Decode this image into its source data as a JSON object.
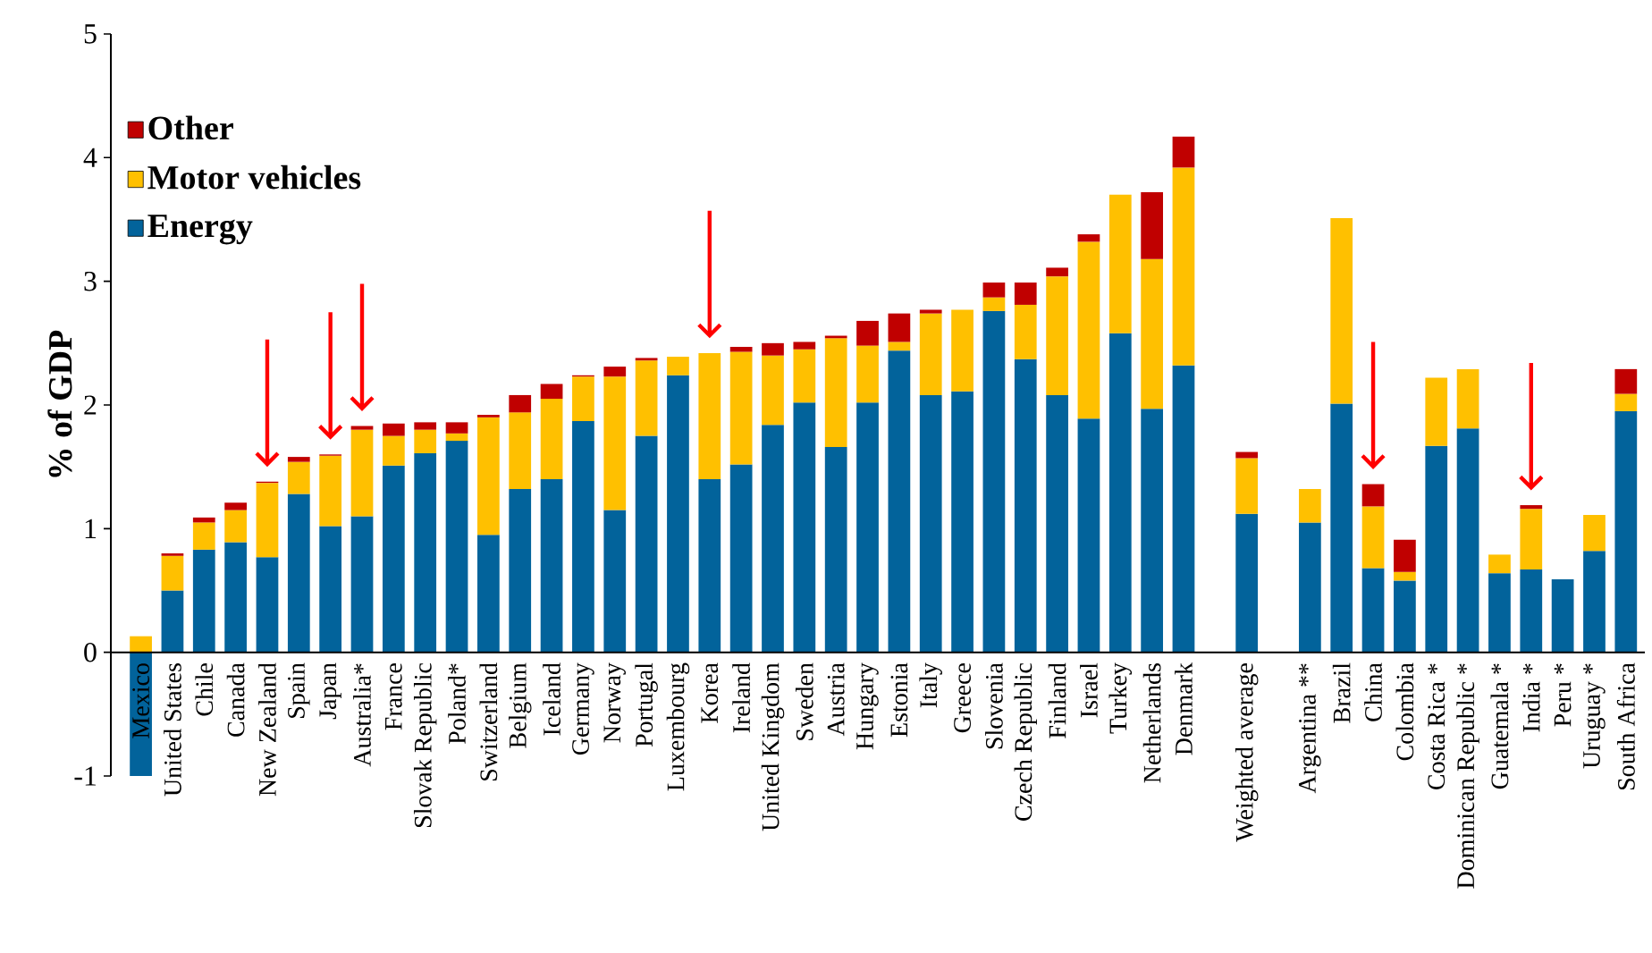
{
  "chart_data": {
    "type": "bar",
    "stacked": true,
    "ylabel": "% of GDP",
    "ylim": [
      -1,
      5
    ],
    "yticks": [
      -1,
      0,
      1,
      2,
      3,
      4,
      5
    ],
    "legend": "top left",
    "categories": [
      "Mexico",
      "United States",
      "Chile",
      "Canada",
      "New Zealand",
      "Spain",
      "Japan",
      "Australia*",
      "France",
      "Slovak Republic",
      "Poland*",
      "Switzerland",
      "Belgium",
      "Iceland",
      "Germany",
      "Norway",
      "Portugal",
      "Luxembourg",
      "Korea",
      "Ireland",
      "United Kingdom",
      "Sweden",
      "Austria",
      "Hungary",
      "Estonia",
      "Italy",
      "Greece",
      "Slovenia",
      "Czech Republic",
      "Finland",
      "Israel",
      "Turkey",
      "Netherlands",
      "Denmark",
      null,
      "Weighted average",
      null,
      "Argentina **",
      "Brazil",
      "China",
      "Colombia",
      "Costa Rica *",
      "Dominican Republic *",
      "Guatemala *",
      "India *",
      "Peru *",
      "Uruguay *",
      "South Africa"
    ],
    "series": [
      {
        "name": "Energy",
        "color": "#02639b",
        "values": [
          -1.0,
          0.5,
          0.83,
          0.89,
          0.77,
          1.28,
          1.02,
          1.1,
          1.51,
          1.61,
          1.71,
          0.95,
          1.32,
          1.4,
          1.87,
          1.15,
          1.75,
          2.24,
          1.4,
          1.52,
          1.84,
          2.02,
          1.66,
          2.02,
          2.44,
          2.08,
          2.11,
          2.76,
          2.37,
          2.08,
          1.89,
          2.58,
          1.97,
          2.32,
          null,
          1.12,
          null,
          1.05,
          2.01,
          0.68,
          0.58,
          1.67,
          1.81,
          0.64,
          0.67,
          0.59,
          0.82,
          1.95
        ]
      },
      {
        "name": "Motor vehicles",
        "color": "#ffc000",
        "values": [
          0.13,
          0.28,
          0.22,
          0.26,
          0.6,
          0.26,
          0.57,
          0.7,
          0.24,
          0.19,
          0.06,
          0.95,
          0.62,
          0.65,
          0.36,
          1.08,
          0.61,
          0.15,
          1.02,
          0.91,
          0.56,
          0.43,
          0.88,
          0.46,
          0.07,
          0.66,
          0.66,
          0.11,
          0.44,
          0.96,
          1.43,
          1.12,
          1.21,
          1.6,
          null,
          0.45,
          null,
          0.27,
          1.5,
          0.5,
          0.07,
          0.55,
          0.48,
          0.15,
          0.49,
          0,
          0.29,
          0.14
        ]
      },
      {
        "name": "Other",
        "color": "#c00000",
        "values": [
          0,
          0.02,
          0.04,
          0.06,
          0.01,
          0.04,
          0.01,
          0.03,
          0.1,
          0.06,
          0.09,
          0.02,
          0.14,
          0.12,
          0.01,
          0.08,
          0.02,
          0,
          0,
          0.04,
          0.1,
          0.06,
          0.02,
          0.2,
          0.23,
          0.03,
          0,
          0.12,
          0.18,
          0.07,
          0.06,
          0,
          0.54,
          0.25,
          null,
          0.05,
          null,
          0,
          0,
          0.18,
          0.26,
          0,
          0,
          0,
          0.03,
          0,
          0,
          0.2
        ]
      }
    ]
  }
}
